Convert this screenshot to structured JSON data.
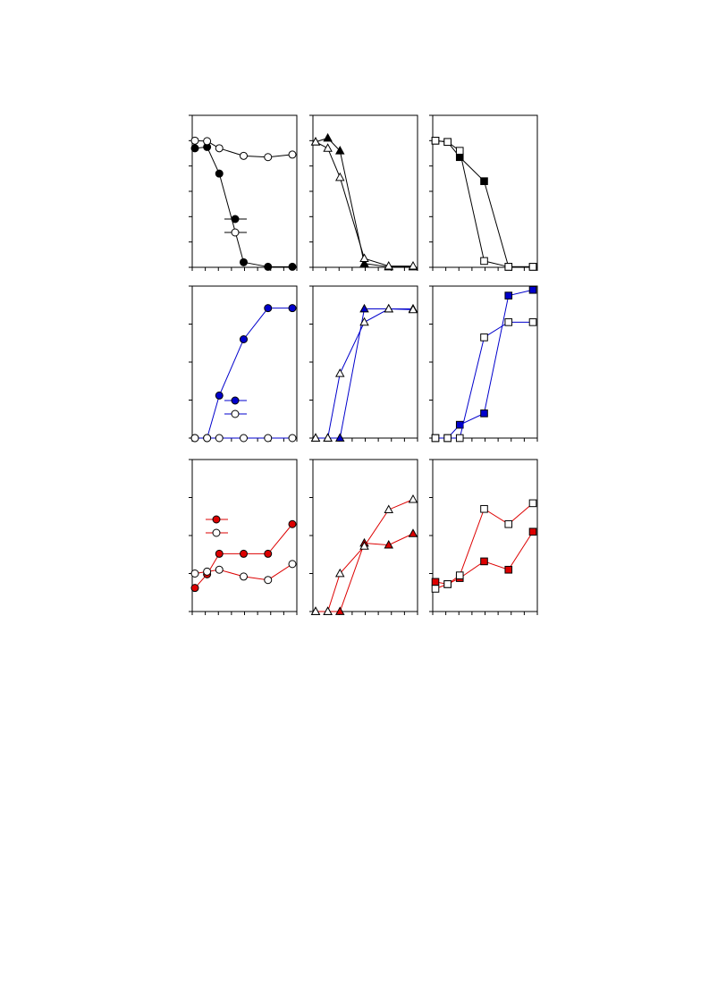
{
  "figure": {
    "marker_fill_open": "#ffffff",
    "marker_stroke": "#000000",
    "panels_note": ""
  },
  "chart_data": [
    {
      "type": "line",
      "row": 0,
      "col": 0,
      "color": "#000000",
      "marker": "circle",
      "xlim": [
        0,
        8
      ],
      "ylim": [
        0,
        6
      ],
      "xticks": [
        0,
        1,
        2,
        3,
        4,
        5,
        6,
        7,
        8
      ],
      "yticks": [
        0,
        1,
        2,
        3,
        4,
        5,
        6
      ],
      "legend": [
        {
          "fill": "#000000"
        },
        {
          "fill": "#ffffff"
        }
      ],
      "series": [
        {
          "fill": "#000000",
          "x": [
            0,
            1,
            2,
            4,
            6,
            8
          ],
          "y": [
            4.7,
            4.75,
            3.7,
            0.2,
            0.02,
            0.02
          ]
        },
        {
          "fill": "#ffffff",
          "x": [
            0,
            1,
            2,
            4,
            6,
            8
          ],
          "y": [
            5.0,
            4.98,
            4.7,
            4.4,
            4.35,
            4.45
          ]
        }
      ]
    },
    {
      "type": "line",
      "row": 0,
      "col": 1,
      "color": "#000000",
      "marker": "triangle",
      "xlim": [
        0,
        8
      ],
      "ylim": [
        0,
        6
      ],
      "xticks": [
        0,
        1,
        2,
        3,
        4,
        5,
        6,
        7,
        8
      ],
      "yticks": [
        0,
        1,
        2,
        3,
        4,
        5,
        6
      ],
      "series": [
        {
          "fill": "#000000",
          "x": [
            0,
            1,
            2,
            4,
            6,
            8
          ],
          "y": [
            4.95,
            5.1,
            4.6,
            0.15,
            0.02,
            0.02
          ]
        },
        {
          "fill": "#ffffff",
          "x": [
            0,
            1,
            2,
            4,
            6,
            8
          ],
          "y": [
            4.95,
            4.7,
            3.55,
            0.35,
            0.05,
            0.05
          ]
        }
      ]
    },
    {
      "type": "line",
      "row": 0,
      "col": 2,
      "color": "#000000",
      "marker": "square",
      "xlim": [
        0,
        8
      ],
      "ylim": [
        0,
        6
      ],
      "xticks": [
        0,
        1,
        2,
        3,
        4,
        5,
        6,
        7,
        8
      ],
      "yticks": [
        0,
        1,
        2,
        3,
        4,
        5,
        6
      ],
      "series": [
        {
          "fill": "#000000",
          "x": [
            0,
            1,
            2,
            4,
            6,
            8
          ],
          "y": [
            5.0,
            4.95,
            4.35,
            3.4,
            0.02,
            0.02
          ]
        },
        {
          "fill": "#ffffff",
          "x": [
            0,
            1,
            2,
            4,
            6,
            8
          ],
          "y": [
            5.0,
            4.95,
            4.6,
            0.25,
            0.02,
            0.02
          ]
        }
      ]
    },
    {
      "type": "line",
      "row": 1,
      "col": 0,
      "color": "#0000cc",
      "marker": "circle",
      "xlim": [
        0,
        8
      ],
      "ylim": [
        0,
        4
      ],
      "xticks": [
        0,
        1,
        2,
        3,
        4,
        5,
        6,
        7,
        8
      ],
      "yticks": [
        0,
        1,
        2,
        3,
        4
      ],
      "legend": [
        {
          "fill": "#0000cc"
        },
        {
          "fill": "#ffffff"
        }
      ],
      "series": [
        {
          "fill": "#0000cc",
          "x": [
            0,
            1,
            2,
            4,
            6,
            8
          ],
          "y": [
            0,
            0,
            1.12,
            2.6,
            3.42,
            3.42
          ]
        },
        {
          "fill": "#ffffff",
          "x": [
            0,
            1,
            2,
            4,
            6,
            8
          ],
          "y": [
            0,
            0,
            0,
            0,
            0,
            0
          ]
        }
      ]
    },
    {
      "type": "line",
      "row": 1,
      "col": 1,
      "color": "#0000cc",
      "marker": "triangle",
      "xlim": [
        0,
        8
      ],
      "ylim": [
        0,
        4
      ],
      "xticks": [
        0,
        1,
        2,
        3,
        4,
        5,
        6,
        7,
        8
      ],
      "yticks": [
        0,
        1,
        2,
        3,
        4
      ],
      "series": [
        {
          "fill": "#0000cc",
          "x": [
            0,
            1,
            2,
            4,
            6,
            8
          ],
          "y": [
            0,
            0,
            0,
            3.4,
            3.4,
            3.4
          ]
        },
        {
          "fill": "#ffffff",
          "x": [
            0,
            1,
            2,
            4,
            6,
            8
          ],
          "y": [
            0,
            0,
            1.7,
            3.05,
            3.4,
            3.38
          ]
        }
      ]
    },
    {
      "type": "line",
      "row": 1,
      "col": 2,
      "color": "#0000cc",
      "marker": "square",
      "xlim": [
        0,
        8
      ],
      "ylim": [
        0,
        4
      ],
      "xticks": [
        0,
        1,
        2,
        3,
        4,
        5,
        6,
        7,
        8
      ],
      "yticks": [
        0,
        1,
        2,
        3,
        4
      ],
      "series": [
        {
          "fill": "#0000cc",
          "x": [
            0,
            1,
            2,
            4,
            6,
            8
          ],
          "y": [
            0,
            0,
            0.35,
            0.65,
            3.75,
            3.9
          ]
        },
        {
          "fill": "#ffffff",
          "x": [
            0,
            1,
            2,
            4,
            6,
            8
          ],
          "y": [
            0,
            0,
            0,
            2.65,
            3.05,
            3.05
          ]
        }
      ]
    },
    {
      "type": "line",
      "row": 2,
      "col": 0,
      "color": "#dd0000",
      "marker": "circle",
      "xlim": [
        0,
        8
      ],
      "ylim": [
        0,
        4
      ],
      "xticks": [
        0,
        1,
        2,
        3,
        4,
        5,
        6,
        7,
        8
      ],
      "yticks": [
        0,
        1,
        2,
        3,
        4
      ],
      "legend": [
        {
          "fill": "#dd0000"
        },
        {
          "fill": "#ffffff"
        }
      ],
      "series": [
        {
          "fill": "#dd0000",
          "x": [
            0,
            1,
            2,
            4,
            6,
            8
          ],
          "y": [
            0.62,
            0.98,
            1.52,
            1.52,
            1.52,
            2.3
          ]
        },
        {
          "fill": "#ffffff",
          "x": [
            0,
            1,
            2,
            4,
            6,
            8
          ],
          "y": [
            1.0,
            1.05,
            1.1,
            0.92,
            0.83,
            1.25
          ]
        }
      ]
    },
    {
      "type": "line",
      "row": 2,
      "col": 1,
      "color": "#dd0000",
      "marker": "triangle",
      "xlim": [
        0,
        8
      ],
      "ylim": [
        0,
        4
      ],
      "xticks": [
        0,
        1,
        2,
        3,
        4,
        5,
        6,
        7,
        8
      ],
      "yticks": [
        0,
        1,
        2,
        3,
        4
      ],
      "series": [
        {
          "fill": "#dd0000",
          "x": [
            0,
            1,
            2,
            4,
            6,
            8
          ],
          "y": [
            0,
            0,
            0,
            1.8,
            1.75,
            2.05
          ]
        },
        {
          "fill": "#ffffff",
          "x": [
            0,
            1,
            2,
            4,
            6,
            8
          ],
          "y": [
            0,
            0,
            1.0,
            1.72,
            2.68,
            2.95
          ]
        }
      ]
    },
    {
      "type": "line",
      "row": 2,
      "col": 2,
      "color": "#dd0000",
      "marker": "square",
      "xlim": [
        0,
        8
      ],
      "ylim": [
        0,
        4
      ],
      "xticks": [
        0,
        1,
        2,
        3,
        4,
        5,
        6,
        7,
        8
      ],
      "yticks": [
        0,
        1,
        2,
        3,
        4
      ],
      "series": [
        {
          "fill": "#dd0000",
          "x": [
            0,
            1,
            2,
            4,
            6,
            8
          ],
          "y": [
            0.78,
            0.72,
            0.88,
            1.32,
            1.1,
            2.1
          ]
        },
        {
          "fill": "#ffffff",
          "x": [
            0,
            1,
            2,
            4,
            6,
            8
          ],
          "y": [
            0.6,
            0.72,
            0.95,
            2.7,
            2.3,
            2.85
          ]
        }
      ]
    }
  ]
}
